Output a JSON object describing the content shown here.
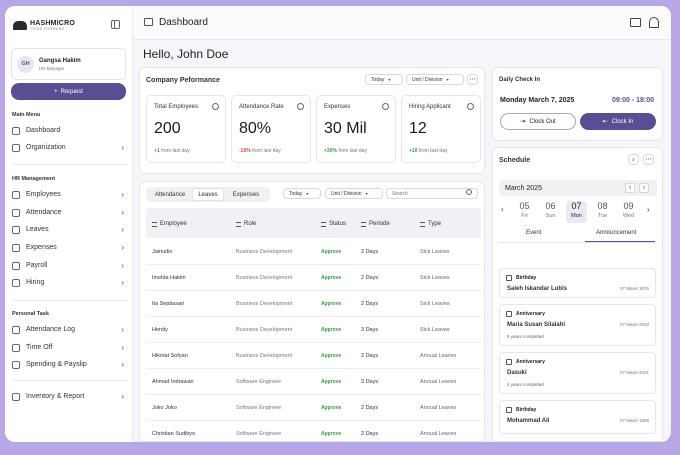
{
  "app": {
    "logo": "HASHMICRO",
    "logo_sub": "THINK FORWARD"
  },
  "profile": {
    "initials": "GH",
    "name": "Gangsa Hakim",
    "role": "HR Manager"
  },
  "request_label": "Request",
  "sidebar": {
    "main_menu": "Main Menu",
    "main_items": [
      {
        "label": "Dashboard",
        "icon": "home-icon"
      },
      {
        "label": "Organization",
        "icon": "org-icon"
      }
    ],
    "hr_management": "HR Management",
    "hr_items": [
      {
        "label": "Employees",
        "icon": "people-icon"
      },
      {
        "label": "Attendance",
        "icon": "clock-icon"
      },
      {
        "label": "Leaves",
        "icon": "leaf-icon"
      },
      {
        "label": "Expenses",
        "icon": "wallet-icon"
      },
      {
        "label": "Payroll",
        "icon": "money-icon"
      },
      {
        "label": "Hiring",
        "icon": "briefcase-icon"
      }
    ],
    "personal_task": "Personal Task",
    "personal_items": [
      {
        "label": "Attendance Log",
        "icon": "location-icon"
      },
      {
        "label": "Time Off",
        "icon": "timer-icon"
      },
      {
        "label": "Spending & Payslip",
        "icon": "coins-icon"
      }
    ],
    "inventory": {
      "label": "Inventory & Report",
      "icon": "box-icon"
    }
  },
  "topbar": {
    "title": "Dashboard"
  },
  "greeting": "Hello, John Doe",
  "performance": {
    "title": "Company Peformance",
    "filter_period": "Today",
    "filter_unit": "Unit / Division",
    "kpis": [
      {
        "label": "Total Employees",
        "value": "200",
        "delta": "+1",
        "delta_text": "from last day",
        "trend": "pos"
      },
      {
        "label": "Attendance Rate",
        "value": "80%",
        "delta": "-10%",
        "delta_text": "from last day",
        "trend": "neg"
      },
      {
        "label": "Expenses",
        "value": "30 Mil",
        "delta": "+30%",
        "delta_text": "from last day",
        "trend": "pos"
      },
      {
        "label": "Hiring Applicant",
        "value": "12",
        "delta": "+10",
        "delta_text": "from last day",
        "trend": "pos"
      }
    ]
  },
  "table": {
    "tabs": [
      "Attendance",
      "Leaves",
      "Expenses"
    ],
    "active_tab": "Leaves",
    "filter_period": "Today",
    "filter_unit": "Unit / Division",
    "search_placeholder": "Search",
    "columns": [
      "Employee",
      "Role",
      "Status",
      "Periode",
      "Type"
    ],
    "rows": [
      [
        "Jainudin",
        "Business Development",
        "Approve",
        "2 Days",
        "Sick Leaves"
      ],
      [
        "Imelda Hakim",
        "Business Development",
        "Approve",
        "2 Days",
        "Sick Leaves"
      ],
      [
        "Ita Septiasari",
        "Business Development",
        "Approve",
        "2 Days",
        "Sick Leaves"
      ],
      [
        "Hendy",
        "Business Development",
        "Approve",
        "3 Days",
        "Sick Leaves"
      ],
      [
        "Hikmat Sofyan",
        "Business Development",
        "Approve",
        "2 Days",
        "Annual Leaves"
      ],
      [
        "Ahmad Indrawan",
        "Software Engineer",
        "Approve",
        "3 Days",
        "Annual Leaves"
      ],
      [
        "Joko Joko",
        "Software Engineer",
        "Approve",
        "2 Days",
        "Annual Leaves"
      ],
      [
        "Christian Sudibyo",
        "Software Engineer",
        "Approve",
        "2 Days",
        "Annual Leaves"
      ]
    ]
  },
  "checkin": {
    "title": "Daily Check In",
    "date": "Monday March 7, 2025",
    "time": "09:00 - 18:00",
    "clock_out": "Clock Out",
    "clock_in": "Clock In"
  },
  "schedule": {
    "title": "Schedule",
    "month": "March 2025",
    "days": [
      {
        "n": "05",
        "w": "Fri"
      },
      {
        "n": "06",
        "w": "Sun"
      },
      {
        "n": "07",
        "w": "Mon"
      },
      {
        "n": "08",
        "w": "Tue"
      },
      {
        "n": "09",
        "w": "Wed"
      }
    ],
    "selected_day": "07",
    "tabs": [
      "Event",
      "Announcement"
    ],
    "active_tab": "Announcement",
    "announcements": [
      {
        "type": "Birthday",
        "name": "Saleh Iskandar Lubis",
        "date": "07 Maret 1976",
        "sub": ""
      },
      {
        "type": "Anniversary",
        "name": "Maria Susan Silalahi",
        "date": "07 Maret 2020",
        "sub": "5 years completed"
      },
      {
        "type": "Anniversary",
        "name": "Dasuki",
        "date": "07 Maret 2021",
        "sub": "4 years completed"
      },
      {
        "type": "Birthday",
        "name": "Mohammad Ali",
        "date": "07 Maret 1986",
        "sub": ""
      }
    ]
  },
  "colors": {
    "accent": "#5b4d93",
    "positive": "#3a9a4a",
    "negative": "#d2473f",
    "background": "#b9a6e6"
  }
}
